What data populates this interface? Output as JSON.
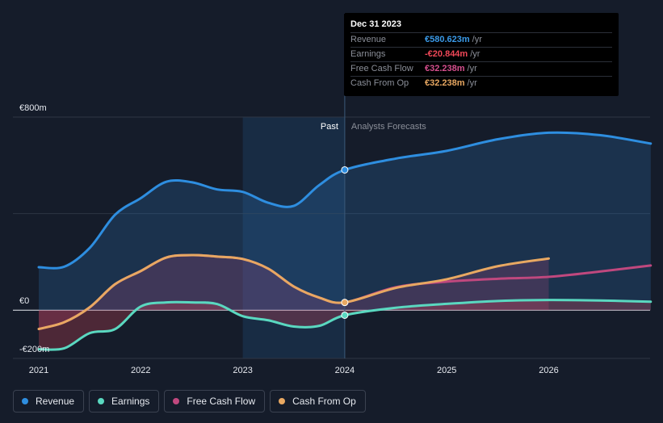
{
  "tooltip": {
    "date": "Dec 31 2023",
    "rows": [
      {
        "label": "Revenue",
        "value": "€580.623m",
        "unit": "/yr",
        "color": "#3a9ae8"
      },
      {
        "label": "Earnings",
        "value": "-€20.844m",
        "unit": "/yr",
        "color": "#f04858"
      },
      {
        "label": "Free Cash Flow",
        "value": "€32.238m",
        "unit": "/yr",
        "color": "#d64f8e"
      },
      {
        "label": "Cash From Op",
        "value": "€32.238m",
        "unit": "/yr",
        "color": "#e8a862"
      }
    ]
  },
  "region_labels": {
    "past": "Past",
    "forecast": "Analysts Forecasts"
  },
  "legend": [
    {
      "label": "Revenue",
      "color": "#2e8ee0"
    },
    {
      "label": "Earnings",
      "color": "#5ad8c0"
    },
    {
      "label": "Free Cash Flow",
      "color": "#c0487e"
    },
    {
      "label": "Cash From Op",
      "color": "#e8a862"
    }
  ],
  "chart_data": {
    "type": "line",
    "y_axis": {
      "min": -200,
      "max": 800,
      "unit": "€m",
      "labels": [
        {
          "value": 800,
          "text": "€800m"
        },
        {
          "value": 0,
          "text": "€0"
        },
        {
          "value": -200,
          "text": "-€200m"
        }
      ]
    },
    "x_axis": {
      "min": 2021,
      "max": 2027,
      "ticks": [
        "2021",
        "2022",
        "2023",
        "2024",
        "2025",
        "2026"
      ]
    },
    "past_start": 2023,
    "now": 2024,
    "series": [
      {
        "name": "Revenue",
        "color": "#2e8ee0",
        "points": [
          [
            2021.0,
            178
          ],
          [
            2021.25,
            180
          ],
          [
            2021.5,
            258
          ],
          [
            2021.75,
            396
          ],
          [
            2022.0,
            464
          ],
          [
            2022.25,
            532
          ],
          [
            2022.5,
            530
          ],
          [
            2022.75,
            500
          ],
          [
            2023.0,
            490
          ],
          [
            2023.25,
            445
          ],
          [
            2023.5,
            432
          ],
          [
            2023.75,
            518
          ],
          [
            2024.0,
            581
          ],
          [
            2024.5,
            628
          ],
          [
            2025.0,
            660
          ],
          [
            2025.5,
            708
          ],
          [
            2026.0,
            735
          ],
          [
            2026.5,
            725
          ],
          [
            2027.0,
            690
          ]
        ]
      },
      {
        "name": "Earnings",
        "color": "#5ad8c0",
        "points": [
          [
            2021.0,
            -162
          ],
          [
            2021.25,
            -158
          ],
          [
            2021.5,
            -95
          ],
          [
            2021.75,
            -78
          ],
          [
            2022.0,
            15
          ],
          [
            2022.25,
            32
          ],
          [
            2022.5,
            32
          ],
          [
            2022.75,
            25
          ],
          [
            2023.0,
            -25
          ],
          [
            2023.25,
            -42
          ],
          [
            2023.5,
            -68
          ],
          [
            2023.75,
            -65
          ],
          [
            2024.0,
            -21
          ],
          [
            2024.5,
            10
          ],
          [
            2025.0,
            26
          ],
          [
            2025.5,
            38
          ],
          [
            2026.0,
            42
          ],
          [
            2026.5,
            40
          ],
          [
            2027.0,
            35
          ]
        ]
      },
      {
        "name": "Free Cash Flow",
        "color": "#c0487e",
        "points": [
          [
            2021.0,
            -78
          ],
          [
            2021.25,
            -50
          ],
          [
            2021.5,
            12
          ],
          [
            2021.75,
            108
          ],
          [
            2022.0,
            162
          ],
          [
            2022.25,
            218
          ],
          [
            2022.5,
            228
          ],
          [
            2022.75,
            222
          ],
          [
            2023.0,
            212
          ],
          [
            2023.25,
            172
          ],
          [
            2023.5,
            98
          ],
          [
            2023.75,
            52
          ],
          [
            2024.0,
            32
          ],
          [
            2024.5,
            95
          ],
          [
            2025.0,
            118
          ],
          [
            2025.5,
            130
          ],
          [
            2026.0,
            138
          ],
          [
            2026.5,
            160
          ],
          [
            2027.0,
            185
          ]
        ]
      },
      {
        "name": "Cash From Op",
        "color": "#e8a862",
        "points": [
          [
            2021.0,
            -78
          ],
          [
            2021.25,
            -50
          ],
          [
            2021.5,
            12
          ],
          [
            2021.75,
            108
          ],
          [
            2022.0,
            162
          ],
          [
            2022.25,
            218
          ],
          [
            2022.5,
            228
          ],
          [
            2022.75,
            222
          ],
          [
            2023.0,
            212
          ],
          [
            2023.25,
            172
          ],
          [
            2023.5,
            98
          ],
          [
            2023.75,
            52
          ],
          [
            2024.0,
            32
          ],
          [
            2024.5,
            92
          ],
          [
            2025.0,
            128
          ],
          [
            2025.5,
            182
          ],
          [
            2026.0,
            214
          ]
        ]
      }
    ]
  }
}
